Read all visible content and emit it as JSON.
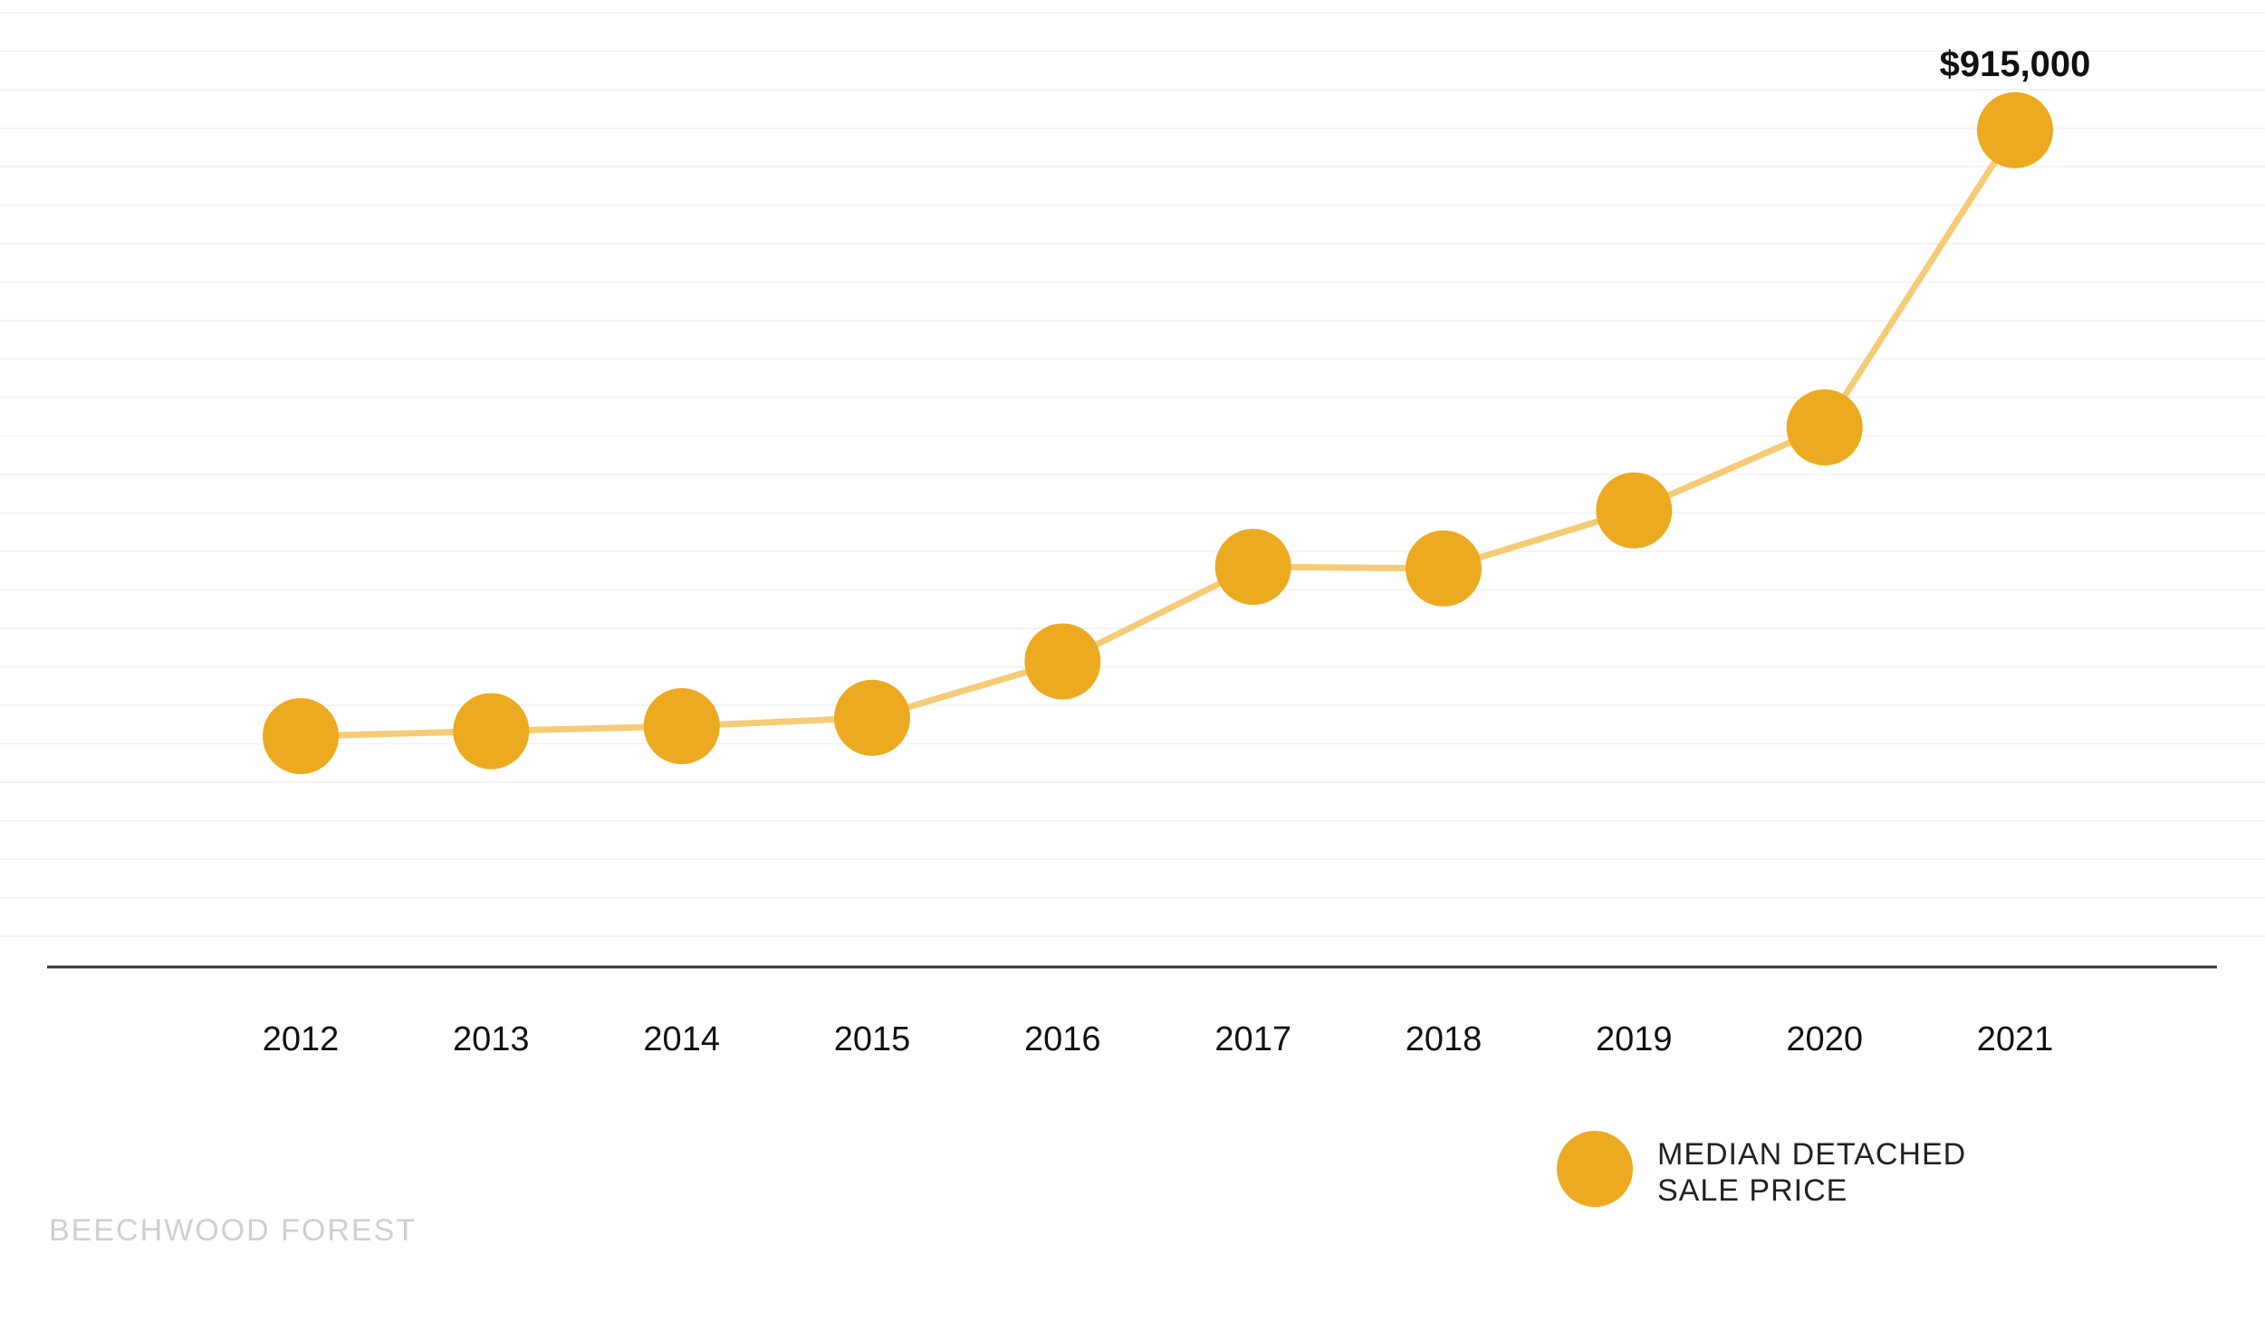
{
  "chart_data": {
    "type": "line",
    "title": "",
    "xlabel": "",
    "ylabel": "",
    "categories": [
      "2012",
      "2013",
      "2014",
      "2015",
      "2016",
      "2017",
      "2018",
      "2019",
      "2020",
      "2021"
    ],
    "series": [
      {
        "name": "MEDIAN DETACHED SALE PRICE",
        "values": [
          550000,
          553000,
          556000,
          561000,
          595000,
          652000,
          651000,
          686000,
          736000,
          915000
        ]
      }
    ],
    "data_labels": [
      {
        "category": "2021",
        "text": "$915,000"
      }
    ],
    "ylim": [
      400000,
      1000000
    ],
    "grid": true,
    "legend": {
      "position": "bottom-right",
      "lines": [
        "MEDIAN DETACHED",
        "SALE PRICE"
      ]
    },
    "colors": {
      "marker": "#ECAA20",
      "line": "#F6CB75",
      "axis": "#333333",
      "grid": "#F1F1F1"
    }
  },
  "watermark": "BEECHWOOD FOREST"
}
